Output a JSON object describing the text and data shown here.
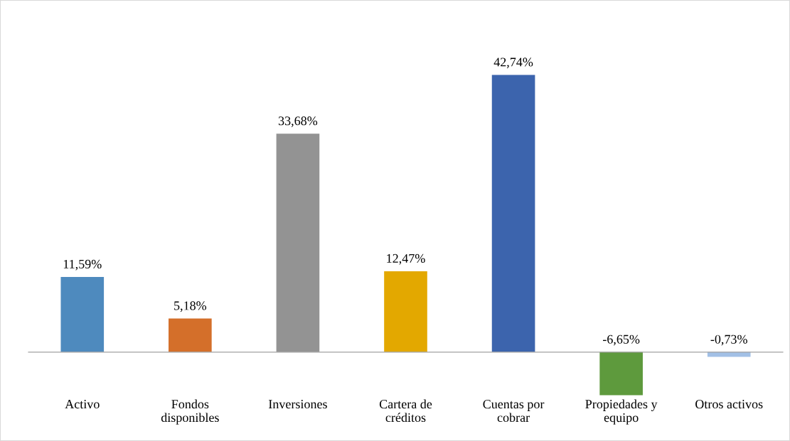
{
  "chart_data": {
    "type": "bar",
    "categories": [
      "Activo",
      "Fondos\ndisponibles",
      "Inversiones",
      "Cartera de\ncréditos",
      "Cuentas por\ncobrar",
      "Propiedades y\nequipo",
      "Otros activos"
    ],
    "values": [
      11.59,
      5.18,
      33.68,
      12.47,
      42.74,
      -6.65,
      -0.73
    ],
    "colors": [
      "#4e8abe",
      "#d46f2a",
      "#939393",
      "#e3a800",
      "#3c64ad",
      "#5e9a3d",
      "#a2c0e6"
    ],
    "value_labels": [
      "11,59%",
      "5,18%",
      "33,68%",
      "12,47%",
      "42,74%",
      "-6,65%",
      "-0,73%"
    ],
    "grid": false,
    "legend": false
  }
}
